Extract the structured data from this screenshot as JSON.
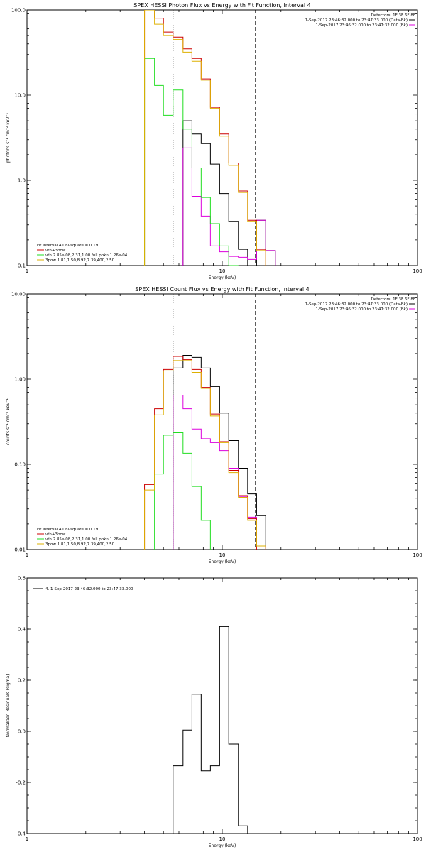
{
  "chart_data": [
    {
      "type": "line",
      "title": "SPEX HESSI Photon Flux vs Energy with Fit Function, Interval 4",
      "xlabel": "Energy (keV)",
      "ylabel": "photons s⁻¹ cm⁻² keV⁻¹",
      "xlim": [
        1,
        100
      ],
      "ylim": [
        0.1,
        100
      ],
      "xscale": "log",
      "yscale": "log",
      "x_ticks": [
        {
          "v": 1,
          "label": "1"
        },
        {
          "v": 10,
          "label": "10"
        },
        {
          "v": 100,
          "label": "100"
        }
      ],
      "y_ticks": [
        {
          "v": 0.1,
          "label": "0.1"
        },
        {
          "v": 1,
          "label": "1.0"
        },
        {
          "v": 10,
          "label": "10.0"
        },
        {
          "v": 100,
          "label": "100.0"
        }
      ],
      "vlines": [
        {
          "x": 5.6,
          "style": "dotted"
        },
        {
          "x": 14.8,
          "style": "dashed"
        }
      ],
      "legend_topright": [
        "Detectors: 1F 3F 6F 8F",
        "1-Sep-2017 23:46:32.000 to 23:47:33.000 (Data-Bk)",
        "1-Sep-2017 23:46:32.000 to 23:47:32.000 (Bk)"
      ],
      "legend_bottomleft": [
        "Fit Interval 4   Chi-square = 0.19",
        "vth+3pow",
        "vth 2.85e-08,2.31,1.00   full pbkn 1.26e-04",
        "3pow 1.81,1.50,8.92,7.39,400,2.50"
      ],
      "legend_bottomleft_colors": [
        "#cc0000",
        "#22dd22",
        "#ddb000"
      ],
      "bin_edges": [
        4.0,
        4.5,
        5.0,
        5.6,
        6.3,
        7.0,
        7.8,
        8.7,
        9.7,
        10.8,
        12.1,
        13.5,
        15.0,
        16.7,
        18.7
      ],
      "series": [
        {
          "color": "#000000",
          "start": 4,
          "values": [
            5.0,
            3.5,
            2.7,
            1.55,
            0.7,
            0.33,
            0.155,
            0.065,
            0.34,
            0.15
          ]
        },
        {
          "color": "#dd00dd",
          "start": 4,
          "values": [
            2.4,
            0.65,
            0.38,
            0.17,
            0.145,
            0.128,
            0.125,
            0.118,
            0.34,
            0.15
          ]
        },
        {
          "color": "#cc0000",
          "start": 0,
          "values": [
            100,
            80,
            55,
            48,
            35,
            27,
            15.5,
            7.2,
            3.5,
            1.6,
            0.75,
            0.34,
            0.155
          ]
        },
        {
          "color": "#22dd22",
          "start": 0,
          "values": [
            27,
            13,
            5.8,
            11.5,
            4.0,
            1.4,
            0.63,
            0.31,
            0.17,
            0.075
          ]
        },
        {
          "color": "#ddb000",
          "start": 0,
          "values": [
            100,
            68,
            50,
            45,
            32,
            25,
            15,
            7.0,
            3.3,
            1.5,
            0.72,
            0.33,
            0.15
          ]
        }
      ]
    },
    {
      "type": "line",
      "title": "SPEX HESSI Count Flux vs Energy with Fit Function, Interval 4",
      "xlabel": "Energy (keV)",
      "ylabel": "counts s⁻¹ cm⁻² keV⁻¹",
      "xlim": [
        1,
        100
      ],
      "ylim": [
        0.01,
        10
      ],
      "xscale": "log",
      "yscale": "log",
      "x_ticks": [
        {
          "v": 1,
          "label": "1"
        },
        {
          "v": 10,
          "label": "10"
        },
        {
          "v": 100,
          "label": "100"
        }
      ],
      "y_ticks": [
        {
          "v": 0.01,
          "label": "0.01"
        },
        {
          "v": 0.1,
          "label": "0.10"
        },
        {
          "v": 1,
          "label": "1.00"
        },
        {
          "v": 10,
          "label": "10.00"
        }
      ],
      "vlines": [
        {
          "x": 5.6,
          "style": "dotted"
        },
        {
          "x": 14.8,
          "style": "dashed"
        }
      ],
      "legend_topright": [
        "Detectors: 1F 3F 6F 8F",
        "1-Sep-2017 23:46:32.000 to 23:47:33.000 (Data-Bk)",
        "1-Sep-2017 23:46:32.000 to 23:47:32.000 (Bk)"
      ],
      "legend_bottomleft": [
        "Fit Interval 4   Chi-square = 0.19",
        "vth+3pow",
        "vth 2.85e-08,2.31,1.00   full pbkn 1.26e-04",
        "3pow 1.81,1.50,8.92,7.39,400,2.50"
      ],
      "legend_bottomleft_colors": [
        "#cc0000",
        "#22dd22",
        "#ddb000"
      ],
      "bin_edges": [
        4.0,
        4.5,
        5.0,
        5.6,
        6.3,
        7.0,
        7.8,
        8.7,
        9.7,
        10.8,
        12.1,
        13.5,
        15.0,
        16.7,
        18.7,
        20.9
      ],
      "series": [
        {
          "color": "#000000",
          "start": 3,
          "values": [
            1.35,
            1.9,
            1.8,
            1.35,
            0.82,
            0.4,
            0.19,
            0.09,
            0.045,
            0.025
          ]
        },
        {
          "color": "#dd00dd",
          "start": 3,
          "values": [
            0.65,
            0.45,
            0.26,
            0.2,
            0.18,
            0.145,
            0.09,
            0.042,
            0.024,
            0.011
          ]
        },
        {
          "color": "#cc0000",
          "start": 0,
          "values": [
            0.058,
            0.45,
            1.3,
            1.85,
            1.7,
            1.3,
            0.8,
            0.39,
            0.185,
            0.085,
            0.043,
            0.023
          ]
        },
        {
          "color": "#22dd22",
          "start": 1,
          "values": [
            0.077,
            0.22,
            0.235,
            0.135,
            0.055,
            0.022
          ]
        },
        {
          "color": "#ddb000",
          "start": 0,
          "values": [
            0.05,
            0.38,
            1.25,
            1.65,
            1.65,
            1.2,
            0.78,
            0.37,
            0.18,
            0.08,
            0.041,
            0.022,
            0.011
          ]
        }
      ]
    },
    {
      "type": "line",
      "title": "",
      "xlabel": "Energy (keV)",
      "ylabel": "Normalized Residuals (sigma)",
      "xlim": [
        1,
        100
      ],
      "ylim": [
        -0.4,
        0.6
      ],
      "xscale": "log",
      "yscale": "linear",
      "x_ticks": [
        {
          "v": 1,
          "label": "1"
        },
        {
          "v": 10,
          "label": "10"
        },
        {
          "v": 100,
          "label": "100"
        }
      ],
      "y_ticks": [
        {
          "v": -0.4,
          "label": "-0.4"
        },
        {
          "v": -0.2,
          "label": "-0.2"
        },
        {
          "v": 0.0,
          "label": "0.0"
        },
        {
          "v": 0.2,
          "label": "0.2"
        },
        {
          "v": 0.4,
          "label": "0.4"
        },
        {
          "v": 0.6,
          "label": "0.6"
        }
      ],
      "legend_topleft": [
        "4.  1-Sep-2017 23:46:32.000 to 23:47:33.000"
      ],
      "bin_edges": [
        5.6,
        6.3,
        7.0,
        7.8,
        8.7,
        9.7,
        10.8,
        12.1,
        13.5,
        15.0
      ],
      "series": [
        {
          "color": "#000000",
          "start": 0,
          "values": [
            -0.135,
            0.005,
            0.145,
            -0.155,
            -0.135,
            0.41,
            -0.05,
            -0.37,
            -0.4
          ]
        }
      ]
    }
  ]
}
